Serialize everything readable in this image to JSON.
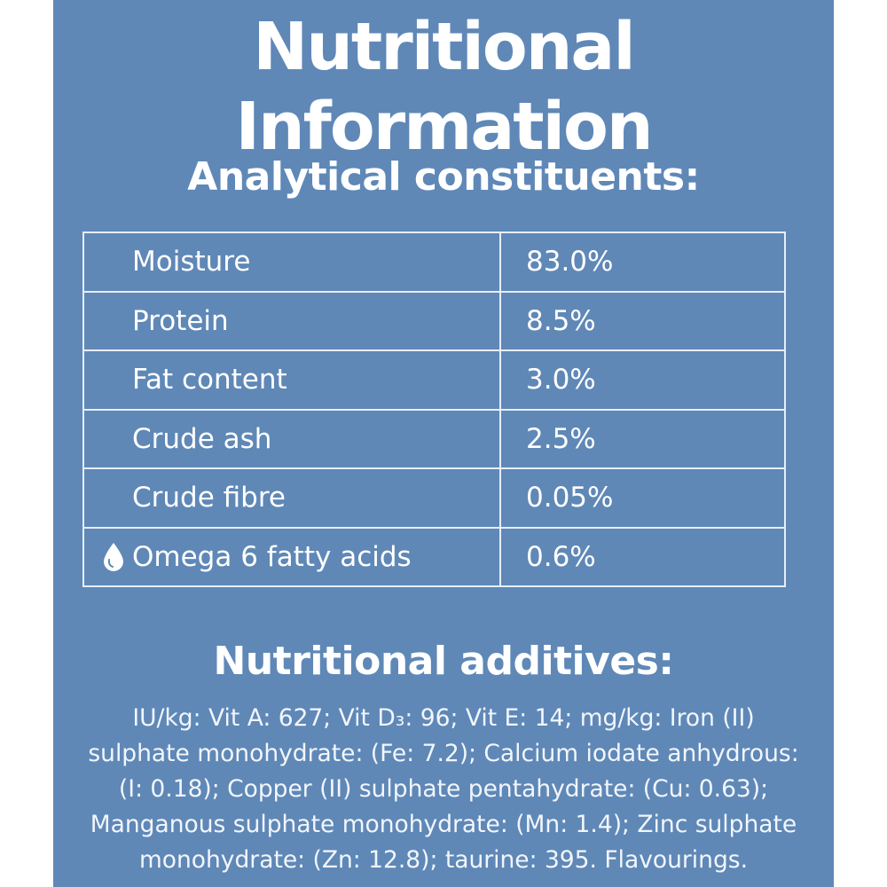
{
  "title": "Nutritional Information",
  "analytical": {
    "heading": "Analytical constituents:",
    "rows": [
      {
        "name": "Moisture",
        "value": "83.0%"
      },
      {
        "name": "Protein",
        "value": "8.5%"
      },
      {
        "name": "Fat content",
        "value": "3.0%"
      },
      {
        "name": "Crude ash",
        "value": "2.5%"
      },
      {
        "name": "Crude fibre",
        "value": "0.05%"
      },
      {
        "name": "Omega 6 fatty acids",
        "value": "0.6%",
        "icon": "water-drop-icon"
      }
    ]
  },
  "additives": {
    "heading": "Nutritional additives:",
    "lines": [
      "IU/kg: Vit A: 627; Vit D₃: 96; Vit E: 14; mg/kg: Iron (II)",
      "sulphate monohydrate: (Fe: 7.2); Calcium iodate anhydrous:",
      "(I: 0.18); Copper (II) sulphate pentahydrate: (Cu: 0.63);",
      "Manganous sulphate monohydrate: (Mn: 1.4); Zinc sulphate",
      "monohydrate: (Zn: 12.8); taurine: 395. Flavourings."
    ]
  },
  "colors": {
    "panel": "#5f88b7",
    "text": "#ffffff"
  }
}
